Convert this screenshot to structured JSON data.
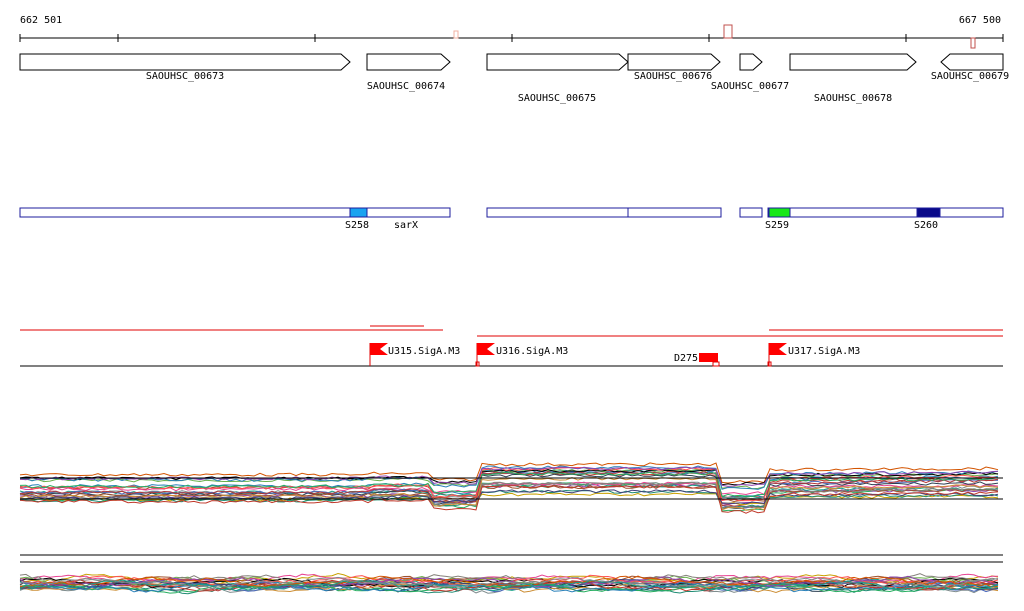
{
  "coord_start": "662 501",
  "coord_end": "667 500",
  "colors": {
    "gene_outline": "#000000",
    "segment_outline": "#1c1c9c",
    "S258": "#1aa3f0",
    "S259": "#18e818",
    "S260": "#0a0a8a",
    "promoter": "#ff0000",
    "marker": "#c0504d"
  },
  "genes": [
    {
      "label": "SAOUHSC_00673"
    },
    {
      "label": "SAOUHSC_00674"
    },
    {
      "label": "SAOUHSC_00675"
    },
    {
      "label": "SAOUHSC_00676"
    },
    {
      "label": "SAOUHSC_00677"
    },
    {
      "label": "SAOUHSC_00678"
    },
    {
      "label": "SAOUHSC_00679"
    }
  ],
  "segment_labels": {
    "s258": "S258",
    "sarx": "sarX",
    "s259": "S259",
    "s260": "S260"
  },
  "promoters": [
    {
      "label": "U315.SigA.M3"
    },
    {
      "label": "U316.SigA.M3"
    },
    {
      "label": "U317.SigA.M3"
    }
  ],
  "terminator": {
    "label": "D275"
  }
}
